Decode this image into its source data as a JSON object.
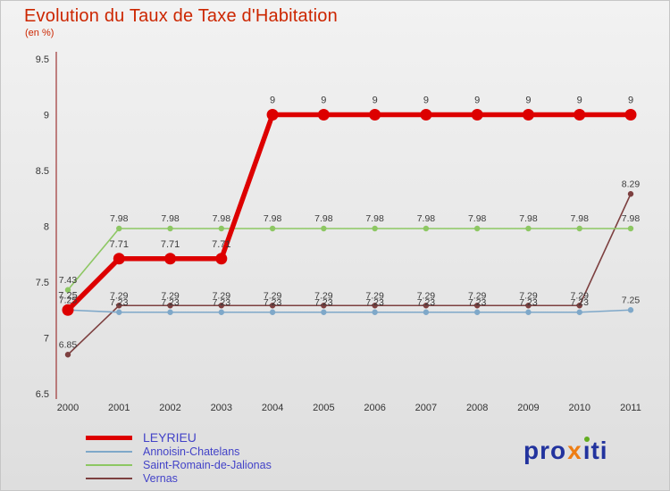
{
  "page": {
    "title": "Evolution du Taux de Taxe d'Habitation",
    "subtitle": "(en %)"
  },
  "chart_data": {
    "type": "line",
    "x": [
      2000,
      2001,
      2002,
      2003,
      2004,
      2005,
      2006,
      2007,
      2008,
      2009,
      2010,
      2011
    ],
    "ylim": [
      6.5,
      9.5
    ],
    "yticks": [
      6.5,
      7,
      7.5,
      8,
      8.5,
      9,
      9.5
    ],
    "grid": false,
    "legend_position": "bottom-left",
    "series": [
      {
        "name": "LEYRIEU",
        "color": "#dd0000",
        "values": [
          7.25,
          7.71,
          7.71,
          7.71,
          9,
          9,
          9,
          9,
          9,
          9,
          9,
          9
        ]
      },
      {
        "name": "Annoisin-Chatelans",
        "color": "#7fa8c9",
        "values": [
          7.25,
          7.23,
          7.23,
          7.23,
          7.23,
          7.23,
          7.23,
          7.23,
          7.23,
          7.23,
          7.23,
          7.25
        ]
      },
      {
        "name": "Saint-Romain-de-Jalionas",
        "color": "#8dc763",
        "values": [
          7.43,
          7.98,
          7.98,
          7.98,
          7.98,
          7.98,
          7.98,
          7.98,
          7.98,
          7.98,
          7.98,
          7.98
        ]
      },
      {
        "name": "Vernas",
        "color": "#7d4040",
        "values": [
          6.85,
          7.29,
          7.29,
          7.29,
          7.29,
          7.29,
          7.29,
          7.29,
          7.29,
          7.29,
          7.29,
          8.29
        ]
      }
    ]
  },
  "logo": {
    "pro": "pro",
    "x": "x",
    "i": "ı",
    "ti": "ti"
  }
}
